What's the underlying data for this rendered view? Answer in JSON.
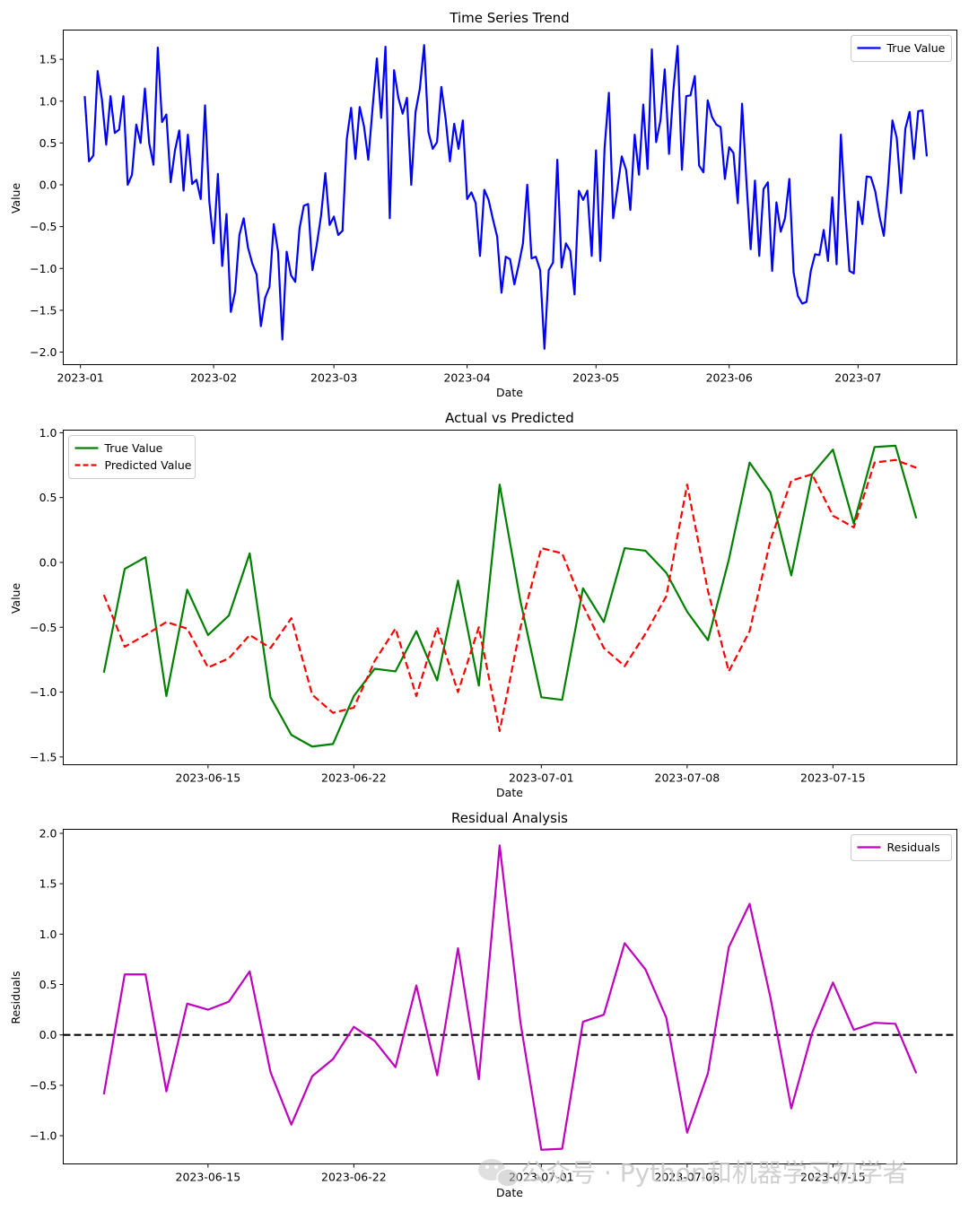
{
  "watermark": {
    "text": "公众号 · Python和机器学习初学者",
    "icon": "wechat-icon"
  },
  "chart_data": [
    {
      "type": "line",
      "title": "Time Series Trend",
      "xlabel": "Date",
      "ylabel": "Value",
      "xlim": [
        -4,
        204
      ],
      "ylim": [
        -2.15,
        1.85
      ],
      "x_ticks": [
        {
          "pos": 0,
          "label": "2023-01"
        },
        {
          "pos": 31,
          "label": "2023-02"
        },
        {
          "pos": 59,
          "label": "2023-03"
        },
        {
          "pos": 90,
          "label": "2023-04"
        },
        {
          "pos": 120,
          "label": "2023-05"
        },
        {
          "pos": 151,
          "label": "2023-06"
        },
        {
          "pos": 181,
          "label": "2023-07"
        }
      ],
      "y_ticks": [
        {
          "v": 1.5,
          "label": "1.5"
        },
        {
          "v": 1.0,
          "label": "1.0"
        },
        {
          "v": 0.5,
          "label": "0.5"
        },
        {
          "v": 0.0,
          "label": "0.0"
        },
        {
          "v": -0.5,
          "label": "−0.5"
        },
        {
          "v": -1.0,
          "label": "−1.0"
        },
        {
          "v": -1.5,
          "label": "−1.5"
        },
        {
          "v": -2.0,
          "label": "−2.0"
        }
      ],
      "legend": {
        "position": "upper-right",
        "entries": [
          {
            "label": "True Value",
            "color": "#0000ff",
            "dash": false
          }
        ]
      },
      "series": [
        {
          "name": "True Value",
          "color": "#0000ff",
          "dash": false,
          "x_start": 1,
          "values": [
            1.06,
            0.28,
            0.35,
            1.36,
            1.02,
            0.48,
            1.06,
            0.62,
            0.66,
            1.06,
            0.0,
            0.12,
            0.72,
            0.5,
            1.15,
            0.5,
            0.24,
            1.64,
            0.75,
            0.84,
            0.03,
            0.41,
            0.65,
            -0.07,
            0.6,
            0.01,
            0.06,
            -0.17,
            0.95,
            -0.2,
            -0.7,
            0.13,
            -0.97,
            -0.35,
            -1.52,
            -1.28,
            -0.6,
            -0.4,
            -0.75,
            -0.94,
            -1.07,
            -1.69,
            -1.35,
            -1.22,
            -0.47,
            -0.8,
            -1.85,
            -0.8,
            -1.08,
            -1.16,
            -0.52,
            -0.25,
            -0.23,
            -1.02,
            -0.72,
            -0.37,
            0.14,
            -0.48,
            -0.38,
            -0.6,
            -0.55,
            0.55,
            0.92,
            0.31,
            0.93,
            0.7,
            0.3,
            0.92,
            1.51,
            0.8,
            1.65,
            -0.4,
            1.37,
            1.04,
            0.85,
            1.04,
            0.0,
            0.87,
            1.15,
            1.67,
            0.63,
            0.43,
            0.51,
            1.17,
            0.79,
            0.28,
            0.73,
            0.43,
            0.77,
            -0.17,
            -0.09,
            -0.22,
            -0.85,
            -0.06,
            -0.18,
            -0.41,
            -0.62,
            -1.29,
            -0.86,
            -0.89,
            -1.19,
            -0.96,
            -0.7,
            0.0,
            -0.88,
            -0.86,
            -1.02,
            -1.96,
            -1.02,
            -0.93,
            0.3,
            -0.99,
            -0.7,
            -0.79,
            -1.31,
            -0.07,
            -0.18,
            -0.07,
            -0.85,
            0.41,
            -0.91,
            0.44,
            1.1,
            -0.4,
            -0.04,
            0.34,
            0.18,
            -0.3,
            0.6,
            0.12,
            0.96,
            0.19,
            1.62,
            0.51,
            0.77,
            1.38,
            0.37,
            1.12,
            1.66,
            0.18,
            1.06,
            1.07,
            1.3,
            0.23,
            0.15,
            1.01,
            0.81,
            0.72,
            0.69,
            0.07,
            0.45,
            0.38,
            -0.22,
            0.97,
            0.05,
            -0.77,
            0.05,
            -0.85,
            -0.05,
            0.03,
            -1.03,
            -0.21,
            -0.56,
            -0.4,
            0.07,
            -1.05,
            -1.33,
            -1.42,
            -1.4,
            -1.03,
            -0.83,
            -0.84,
            -0.54,
            -0.91,
            -0.15,
            -0.95,
            0.6,
            -0.29,
            -1.03,
            -1.06,
            -0.2,
            -0.47,
            0.1,
            0.09,
            -0.08,
            -0.38,
            -0.61,
            0.01,
            0.77,
            0.56,
            -0.1,
            0.67,
            0.87,
            0.31,
            0.88,
            0.89,
            0.34
          ]
        }
      ]
    },
    {
      "type": "line",
      "title": "Actual vs Predicted",
      "xlabel": "Date",
      "ylabel": "Value",
      "xlim": [
        -1.95,
        40.95
      ],
      "ylim": [
        -1.56,
        1.02
      ],
      "x_ticks": [
        {
          "pos": 5,
          "label": "2023-06-15"
        },
        {
          "pos": 12,
          "label": "2023-06-22"
        },
        {
          "pos": 21,
          "label": "2023-07-01"
        },
        {
          "pos": 28,
          "label": "2023-07-08"
        },
        {
          "pos": 35,
          "label": "2023-07-15"
        }
      ],
      "y_ticks": [
        {
          "v": 1.0,
          "label": "1.0"
        },
        {
          "v": 0.5,
          "label": "0.5"
        },
        {
          "v": 0.0,
          "label": "0.0"
        },
        {
          "v": -0.5,
          "label": "−0.5"
        },
        {
          "v": -1.0,
          "label": "−1.0"
        },
        {
          "v": -1.5,
          "label": "−1.5"
        }
      ],
      "legend": {
        "position": "upper-left",
        "entries": [
          {
            "label": "True Value",
            "color": "#008000",
            "dash": false
          },
          {
            "label": "Predicted Value",
            "color": "#ff0000",
            "dash": true
          }
        ]
      },
      "series": [
        {
          "name": "True Value",
          "color": "#008000",
          "dash": false,
          "x_start": 0,
          "values": [
            -0.85,
            -0.05,
            0.04,
            -1.03,
            -0.21,
            -0.56,
            -0.41,
            0.07,
            -1.04,
            -1.33,
            -1.42,
            -1.4,
            -1.03,
            -0.82,
            -0.84,
            -0.53,
            -0.91,
            -0.14,
            -0.95,
            0.6,
            -0.3,
            -1.04,
            -1.06,
            -0.2,
            -0.46,
            0.11,
            0.09,
            -0.08,
            -0.38,
            -0.6,
            0.02,
            0.77,
            0.54,
            -0.1,
            0.68,
            0.87,
            0.3,
            0.89,
            0.9,
            0.34
          ]
        },
        {
          "name": "Predicted Value",
          "color": "#ff0000",
          "dash": true,
          "x_start": 0,
          "values": [
            -0.25,
            -0.65,
            -0.56,
            -0.46,
            -0.51,
            -0.81,
            -0.74,
            -0.56,
            -0.66,
            -0.43,
            -1.02,
            -1.16,
            -1.12,
            -0.76,
            -0.51,
            -1.03,
            -0.5,
            -1.0,
            -0.5,
            -1.3,
            -0.5,
            0.11,
            0.07,
            -0.33,
            -0.66,
            -0.8,
            -0.55,
            -0.26,
            0.6,
            -0.22,
            -0.84,
            -0.53,
            0.17,
            0.63,
            0.68,
            0.36,
            0.27,
            0.77,
            0.79,
            0.73
          ]
        }
      ]
    },
    {
      "type": "line",
      "title": "Residual Analysis",
      "xlabel": "Date",
      "ylabel": "Residuals",
      "xlim": [
        -1.95,
        40.95
      ],
      "ylim": [
        -1.28,
        2.04
      ],
      "x_ticks": [
        {
          "pos": 5,
          "label": "2023-06-15"
        },
        {
          "pos": 12,
          "label": "2023-06-22"
        },
        {
          "pos": 21,
          "label": "2023-07-01"
        },
        {
          "pos": 28,
          "label": "2023-07-08"
        },
        {
          "pos": 35,
          "label": "2023-07-15"
        }
      ],
      "y_ticks": [
        {
          "v": 2.0,
          "label": "2.0"
        },
        {
          "v": 1.5,
          "label": "1.5"
        },
        {
          "v": 1.0,
          "label": "1.0"
        },
        {
          "v": 0.5,
          "label": "0.5"
        },
        {
          "v": 0.0,
          "label": "0.0"
        },
        {
          "v": -0.5,
          "label": "−0.5"
        },
        {
          "v": -1.0,
          "label": "−1.0"
        }
      ],
      "hline": {
        "y": 0.0,
        "color": "#000000",
        "dash": true
      },
      "legend": {
        "position": "upper-right",
        "entries": [
          {
            "label": "Residuals",
            "color": "#bf00bf",
            "dash": false
          }
        ]
      },
      "series": [
        {
          "name": "Residuals",
          "color": "#bf00bf",
          "dash": false,
          "x_start": 0,
          "values": [
            -0.59,
            0.6,
            0.6,
            -0.56,
            0.31,
            0.25,
            0.33,
            0.63,
            -0.37,
            -0.89,
            -0.41,
            -0.24,
            0.08,
            -0.06,
            -0.32,
            0.49,
            -0.4,
            0.86,
            -0.44,
            1.88,
            0.12,
            -1.14,
            -1.13,
            0.13,
            0.2,
            0.91,
            0.65,
            0.17,
            -0.97,
            -0.38,
            0.87,
            1.3,
            0.37,
            -0.73,
            0.02,
            0.52,
            0.05,
            0.12,
            0.11,
            -0.38
          ]
        }
      ]
    }
  ]
}
